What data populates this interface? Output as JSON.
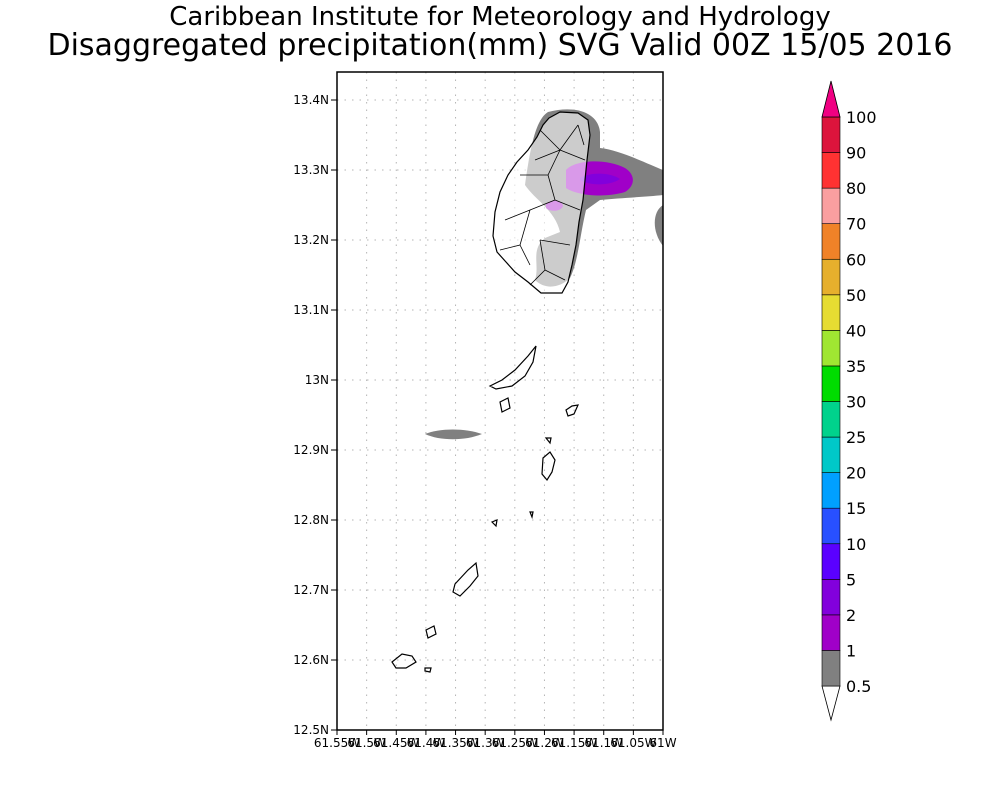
{
  "header": {
    "title": "Caribbean Institute for Meteorology and Hydrology",
    "subtitle": "Disaggregated precipitation(mm) SVG Valid 00Z 15/05 2016"
  },
  "map": {
    "lat_ticks": [
      "13.4N",
      "13.3N",
      "13.2N",
      "13.1N",
      "13N",
      "12.9N",
      "12.8N",
      "12.7N",
      "12.6N",
      "12.5N"
    ],
    "lon_ticks": [
      "61.55W",
      "61.5W",
      "61.45W",
      "61.4W",
      "61.35W",
      "61.3W",
      "61.25W",
      "61.2W",
      "61.15W",
      "61.1W",
      "61.05W",
      "61W"
    ],
    "grid": true,
    "lat_range": [
      12.5,
      13.44
    ],
    "lon_range": [
      -61.55,
      -61.0
    ]
  },
  "colorbar": {
    "levels": [
      "0.5",
      "1",
      "2",
      "5",
      "10",
      "15",
      "20",
      "25",
      "30",
      "35",
      "40",
      "50",
      "60",
      "70",
      "80",
      "90",
      "100"
    ],
    "colors": [
      "#808080",
      "#a000c8",
      "#8200dc",
      "#5a00ff",
      "#2850ff",
      "#00a0ff",
      "#00c8c8",
      "#00d28c",
      "#00dc00",
      "#a0e632",
      "#e6dc32",
      "#e6af2d",
      "#f08228",
      "#fa9fa0",
      "#ff3232",
      "#dc143c",
      "#f00082"
    ],
    "lower_extend_color": "#ffffff",
    "upper_extend_color": "#f00082"
  }
}
